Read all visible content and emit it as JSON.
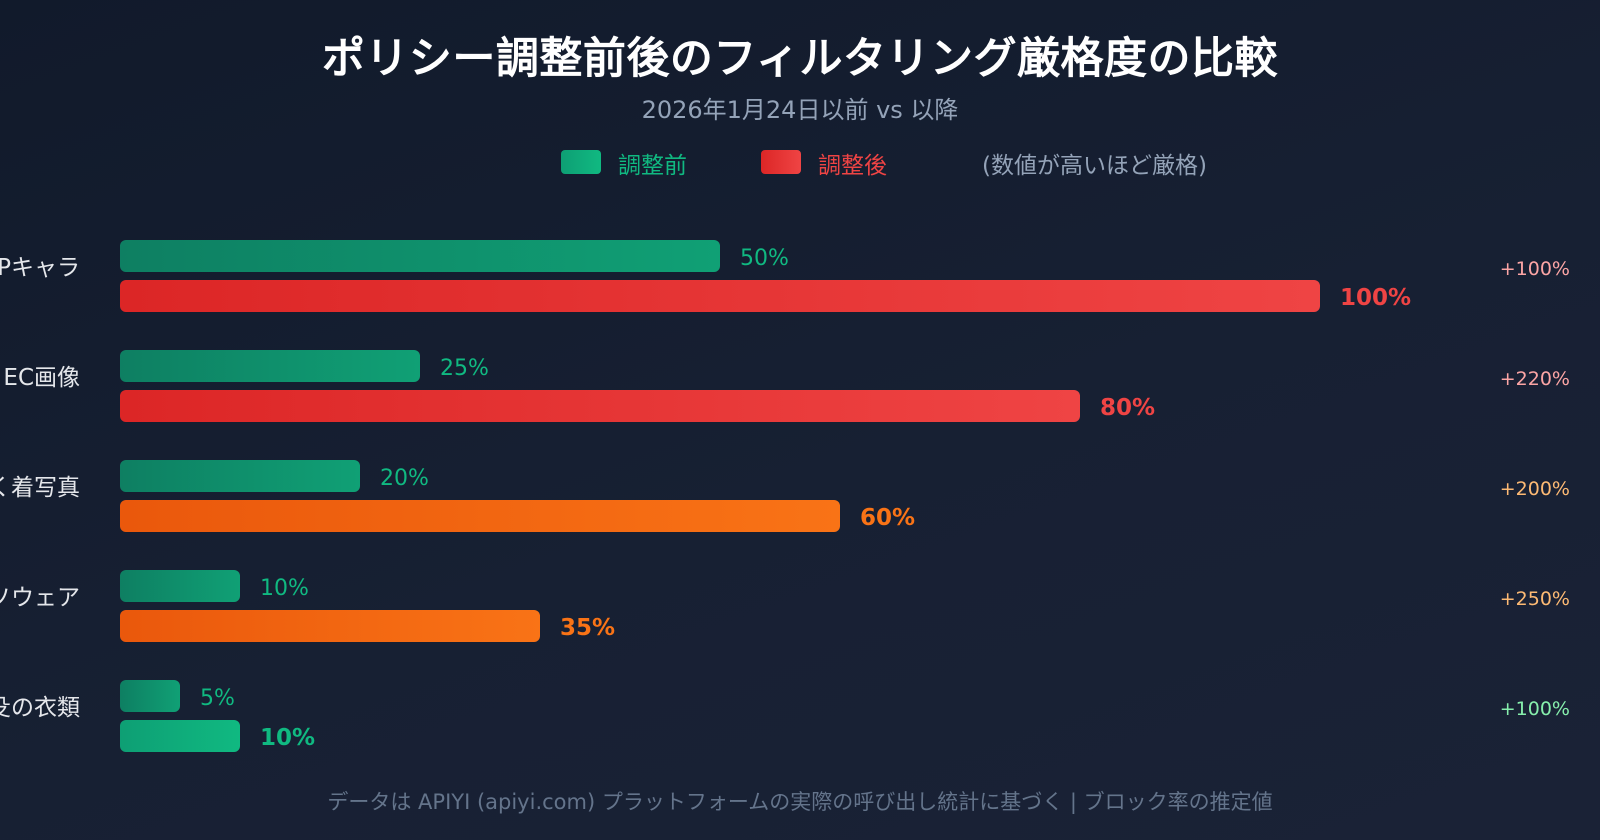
{
  "chart_data": {
    "type": "bar",
    "orientation": "horizontal",
    "title": "ポリシー調整前後のフィルタリング厳格度の比較",
    "subtitle": "2026年1月24日以前 vs 以降",
    "legend": {
      "before": "調整前",
      "after": "調整後",
      "note": "(数値が高いほど厳格)"
    },
    "categories": [
      "Pキャラ",
      "EC画像",
      "く着写真",
      "ソウェア",
      "殳の衣類"
    ],
    "series": [
      {
        "name": "調整前",
        "values": [
          50,
          25,
          20,
          10,
          5
        ],
        "labels": [
          "50%",
          "25%",
          "20%",
          "10%",
          "5%"
        ]
      },
      {
        "name": "調整後",
        "values": [
          100,
          80,
          60,
          35,
          10
        ],
        "labels": [
          "100%",
          "80%",
          "60%",
          "35%",
          "10%"
        ]
      }
    ],
    "changes": [
      "+100%",
      "+220%",
      "+200%",
      "+250%",
      "+100%"
    ],
    "after_severity": [
      "red",
      "red",
      "orange",
      "orange",
      "green"
    ],
    "xlim": [
      0,
      100
    ],
    "footer": "データは APIYI (apiyi.com) プラットフォームの実際の呼び出し統計に基づく | ブロック率の推定値"
  },
  "colors": {
    "green": "#10b981",
    "green_dark": "#0e7f62",
    "red": "#ef4444",
    "red_dark": "#dc2626",
    "orange": "#f97316",
    "orange_dark": "#ea580c",
    "change_red": "#fca5a5",
    "change_orange": "#fdba74",
    "change_green": "#86efac",
    "category_text": "#e5e7eb"
  }
}
